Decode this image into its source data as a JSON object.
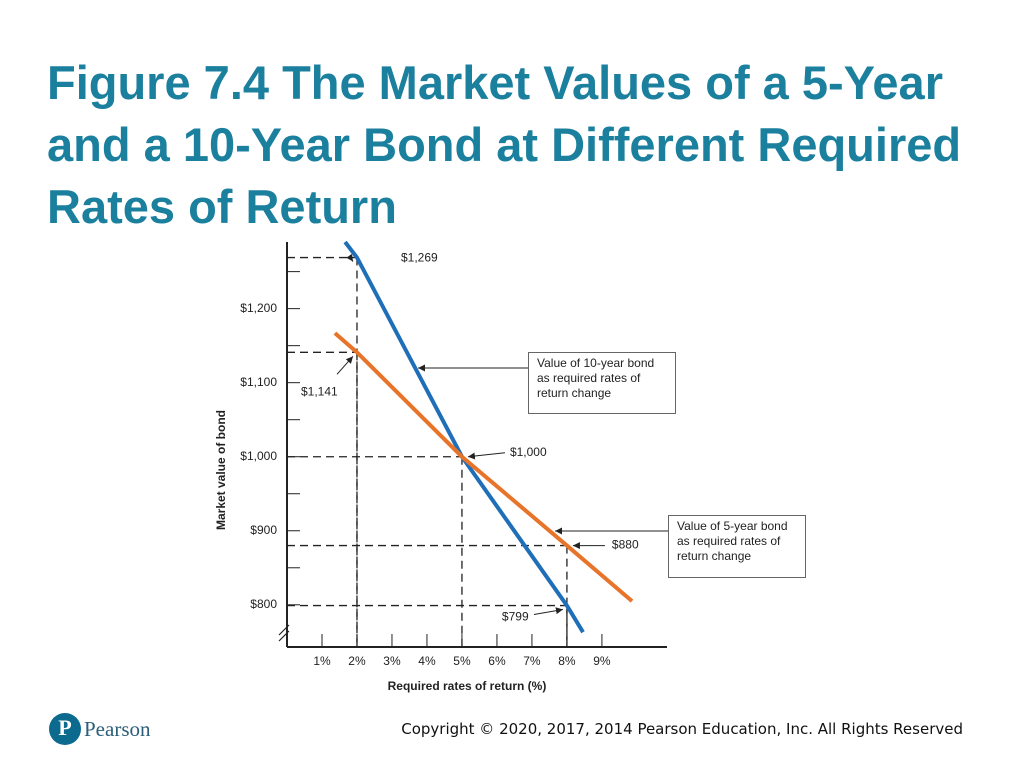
{
  "title": "Figure 7.4 The Market Values of a 5-Year and a 10-Year Bond at Different Required Rates of Return",
  "footer": {
    "brand": "Pearson",
    "copyright": "Copyright © 2020, 2017, 2014 Pearson Education, Inc. All Rights Reserved"
  },
  "chart_data": {
    "type": "line",
    "x_label": "Required rates of return (%)",
    "y_label": "Market value of bond",
    "xlim": [
      0,
      10.86
    ],
    "ylim": [
      743,
      1290
    ],
    "xticks": [
      {
        "value": 1,
        "label": "1%"
      },
      {
        "value": 2,
        "label": "2%"
      },
      {
        "value": 3,
        "label": "3%"
      },
      {
        "value": 4,
        "label": "4%"
      },
      {
        "value": 5,
        "label": "5%"
      },
      {
        "value": 6,
        "label": "6%"
      },
      {
        "value": 7,
        "label": "7%"
      },
      {
        "value": 8,
        "label": "8%"
      },
      {
        "value": 9,
        "label": "9%"
      }
    ],
    "yticks": [
      {
        "value": 800,
        "label": "$800"
      },
      {
        "value": 900,
        "label": "$900"
      },
      {
        "value": 1000,
        "label": "$1,000"
      },
      {
        "value": 1100,
        "label": "$1,100"
      },
      {
        "value": 1200,
        "label": "$1,200"
      }
    ],
    "yminorticks": [
      850,
      950,
      1050,
      1150,
      1250
    ],
    "series": [
      {
        "name": "Value of 10-year bond as required rates of return change",
        "color": "#1f6fb8",
        "x": [
          1.66,
          2,
          5,
          8,
          8.46
        ],
        "values": [
          1290,
          1269,
          1000,
          799,
          763
        ]
      },
      {
        "name": "Value of 5-year bond as required rates of return change",
        "color": "#e8742a",
        "x": [
          1.37,
          2,
          5,
          8,
          9.86
        ],
        "values": [
          1167,
          1141,
          1000,
          880,
          805
        ]
      }
    ],
    "annotations": [
      {
        "text": "$1,269",
        "x": 2,
        "y": 1269
      },
      {
        "text": "$1,141",
        "x": 2,
        "y": 1141
      },
      {
        "text": "$1,000",
        "x": 5,
        "y": 1000
      },
      {
        "text": "$880",
        "x": 8,
        "y": 880
      },
      {
        "text": "$799",
        "x": 8,
        "y": 799
      }
    ]
  }
}
